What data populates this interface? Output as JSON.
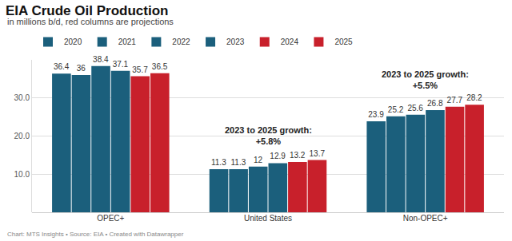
{
  "chart_data": {
    "type": "bar",
    "title": "EIA Crude Oil Production",
    "subtitle": "in millions b/d, red columns are projections",
    "footer": "Chart: MTS Insights • Source: EIA • Created with Datawrapper",
    "categories": [
      "OPEC+",
      "United States",
      "Non-OPEC+"
    ],
    "series": [
      {
        "name": "2020",
        "color": "#1b5f7c",
        "values": [
          36.4,
          11.3,
          23.9
        ]
      },
      {
        "name": "2021",
        "color": "#1b5f7c",
        "values": [
          36,
          11.3,
          25.2
        ]
      },
      {
        "name": "2022",
        "color": "#1b5f7c",
        "values": [
          38.4,
          12,
          25.6
        ]
      },
      {
        "name": "2023",
        "color": "#1b5f7c",
        "values": [
          37.1,
          12.9,
          26.8
        ]
      },
      {
        "name": "2024",
        "color": "#c8202b",
        "values": [
          35.7,
          13.2,
          27.7
        ]
      },
      {
        "name": "2025",
        "color": "#c8202b",
        "values": [
          36.5,
          13.7,
          28.2
        ]
      }
    ],
    "ylim": [
      0,
      40
    ],
    "yticks": [
      {
        "value": 10,
        "label": "10.0"
      },
      {
        "value": 20,
        "label": "20.0"
      },
      {
        "value": 30,
        "label": "30.0"
      }
    ],
    "grid": true,
    "legend": "top-left",
    "data_labels": true,
    "annotations": [
      {
        "category": "United States",
        "lines": [
          "2023 to 2025 growth:",
          "+5.8%"
        ]
      },
      {
        "category": "Non-OPEC+",
        "lines": [
          "2023 to 2025 growth:",
          "+5.5%"
        ]
      }
    ]
  }
}
